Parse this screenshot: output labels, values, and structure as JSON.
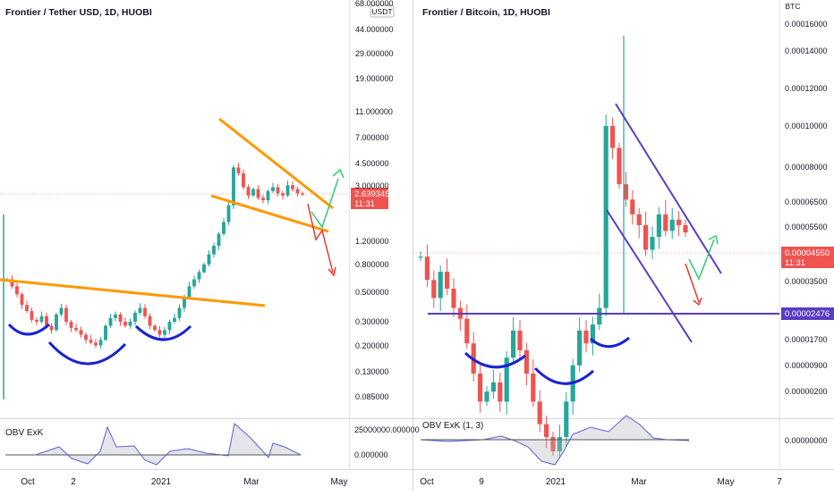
{
  "charts": [
    {
      "id": "left",
      "title": "Frontier / Tether USD, 1D, HUOBI",
      "currency_badge": "USDT",
      "scale": "log",
      "price_ticks": [
        "68.000000",
        "44.000000",
        "29.000000",
        "19.000000",
        "11.000000",
        "7.000000",
        "4.500000",
        "3.000000",
        "2.000000",
        "1.200000",
        "0.800000",
        "0.500000",
        "0.300000",
        "0.200000",
        "0.130000",
        "0.085000"
      ],
      "last_price": "2.639345",
      "countdown": "11:31",
      "x_ticks": [
        "Oct",
        "2",
        "2021",
        "Mar",
        "May"
      ],
      "indicator": {
        "title": "OBV ExK",
        "ticks": [
          "25000000.000000",
          "0.000000"
        ]
      }
    },
    {
      "id": "right",
      "title": "Frontier / Bitcoin, 1D, HUOBI",
      "currency_badge": "BTC",
      "scale": "log",
      "price_ticks": [
        "0.00016000",
        "0.00014000",
        "0.00012000",
        "0.00010000",
        "0.00008000",
        "0.00006500",
        "0.00005500",
        "0.00004550",
        "0.00003500",
        "0.00002476",
        "0.00001700",
        "0.00000900",
        "0.00000200"
      ],
      "last_price": "0.00004550",
      "countdown": "11:31",
      "support_label": "0.00002476",
      "x_ticks": [
        "Oct",
        "9",
        "2021",
        "Mar",
        "May",
        "7"
      ],
      "indicator": {
        "title": "OBV ExK (1, 3)",
        "ticks": [
          "0.00000000"
        ]
      }
    }
  ],
  "chart_data": [
    {
      "type": "candlestick",
      "title": "Frontier / Tether USD, 1D, HUOBI",
      "scale": "log",
      "ylim": [
        0.085,
        68
      ],
      "approx_closes": [
        0.62,
        0.55,
        0.48,
        0.4,
        0.36,
        0.31,
        0.3,
        0.33,
        0.28,
        0.26,
        0.34,
        0.38,
        0.3,
        0.27,
        0.26,
        0.24,
        0.22,
        0.21,
        0.2,
        0.22,
        0.28,
        0.32,
        0.34,
        0.3,
        0.28,
        0.3,
        0.35,
        0.38,
        0.33,
        0.28,
        0.26,
        0.24,
        0.26,
        0.3,
        0.32,
        0.38,
        0.46,
        0.55,
        0.62,
        0.7,
        0.8,
        0.95,
        1.1,
        1.35,
        1.65,
        2.2,
        4.2,
        3.8,
        3.0,
        2.6,
        2.9,
        2.5,
        2.4,
        2.8,
        3.0,
        2.7,
        2.6,
        3.1,
        2.9,
        2.7,
        2.64
      ],
      "last": 2.639345
    },
    {
      "type": "candlestick",
      "title": "Frontier / Bitcoin, 1D, HUOBI",
      "scale": "log",
      "ylim": [
        2e-06,
        0.00016
      ],
      "support_level": 2.476e-05,
      "approx_closes": [
        3.8e-05,
        3.2e-05,
        2.8e-05,
        3.4e-05,
        3e-05,
        2.6e-05,
        2.4e-05,
        2e-05,
        1.6e-05,
        1.3e-05,
        1.4e-05,
        1.5e-05,
        1.3e-05,
        1.8e-05,
        2.2e-05,
        1.9e-05,
        1.6e-05,
        1.3e-05,
        1.1e-05,
        1e-05,
        9e-06,
        1e-05,
        1.3e-05,
        1.7e-05,
        2.2e-05,
        2e-05,
        2.3e-05,
        2.6e-05,
        0.0001,
        8.5e-05,
        6.5e-05,
        5.8e-05,
        5.2e-05,
        4.8e-05,
        4e-05,
        4.4e-05,
        5.2e-05,
        4.6e-05,
        5e-05,
        4.8e-05,
        4.55e-05
      ],
      "last": 4.55e-05
    }
  ]
}
